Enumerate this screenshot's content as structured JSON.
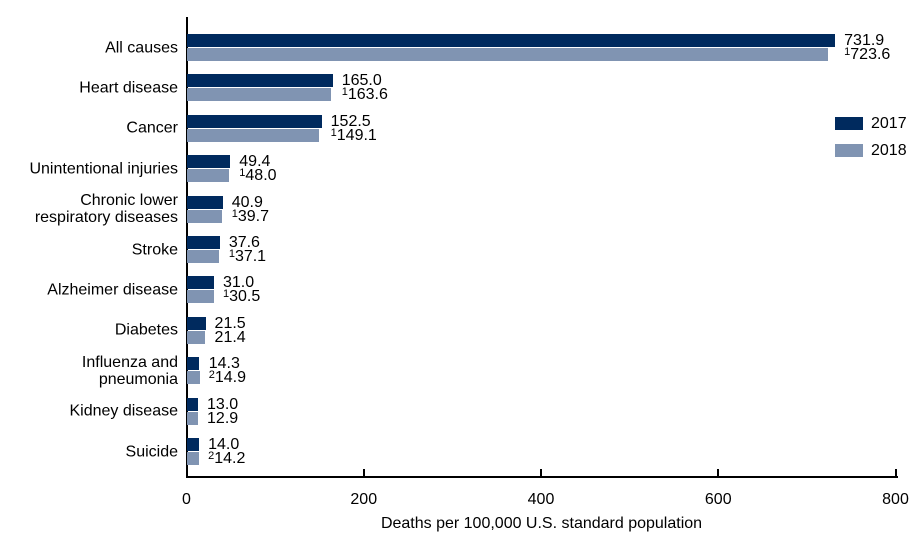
{
  "chart_data": {
    "type": "bar",
    "orientation": "horizontal",
    "xlabel": "Deaths per 100,000 U.S. standard population",
    "xlim": [
      0,
      800
    ],
    "xticks": [
      0,
      200,
      400,
      600,
      800
    ],
    "grid": false,
    "legend_position": "upper-right",
    "categories": [
      "All causes",
      "Heart disease",
      "Cancer",
      "Unintentional injuries",
      "Chronic lower\nrespiratory diseases",
      "Stroke",
      "Alzheimer disease",
      "Diabetes",
      "Influenza and\npneumonia",
      "Kidney disease",
      "Suicide"
    ],
    "series": [
      {
        "name": "2017",
        "color": "#002a5e",
        "values": [
          731.9,
          165.0,
          152.5,
          49.4,
          40.9,
          37.6,
          31.0,
          21.5,
          14.3,
          13.0,
          14.0
        ],
        "sups": [
          "",
          "",
          "",
          "",
          "",
          "",
          "",
          "",
          "",
          "",
          ""
        ]
      },
      {
        "name": "2018",
        "color": "#8094b2",
        "values": [
          723.6,
          163.6,
          149.1,
          48.0,
          39.7,
          37.1,
          30.5,
          21.4,
          14.9,
          12.9,
          14.2
        ],
        "sups": [
          "1",
          "1",
          "1",
          "1",
          "1",
          "1",
          "1",
          "",
          "2",
          "",
          "2"
        ]
      }
    ]
  }
}
